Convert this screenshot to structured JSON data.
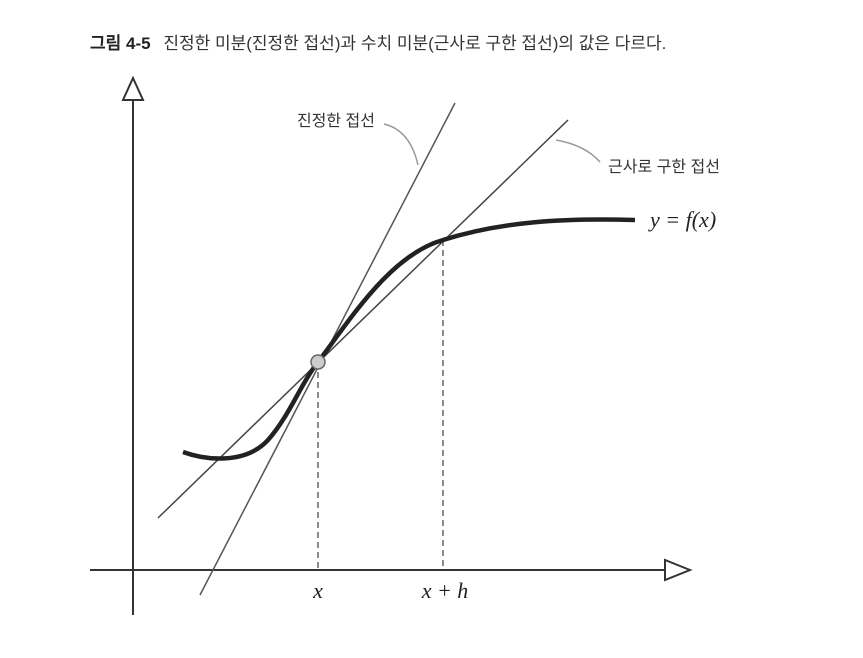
{
  "figure": {
    "number": "그림 4-5",
    "caption": "진정한 미분(진정한 접선)과 수치 미분(근사로 구한 접선)의 값은 다르다."
  },
  "labels": {
    "true_tangent": "진정한 접선",
    "approx_tangent": "근사로 구한 접선",
    "function": "y = f(x)",
    "x": "x",
    "x_plus_h": "x + h"
  }
}
